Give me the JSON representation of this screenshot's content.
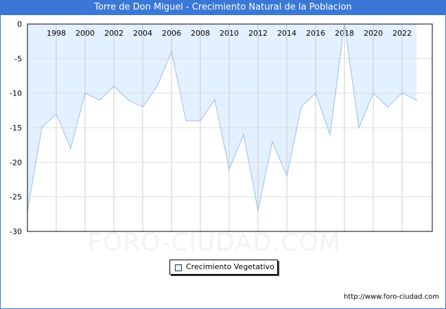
{
  "title": "Torre de Don Miguel - Crecimiento Natural de la Poblacion",
  "watermark": "FORO-CIUDAD.COM",
  "url": "http://www.foro-ciudad.com",
  "colors": {
    "header": "#3a78d8",
    "fill": "#e3f0ff",
    "line": "#9bbcee"
  },
  "chart_data": {
    "type": "area",
    "title": "Torre de Don Miguel - Crecimiento Natural de la Poblacion",
    "x": [
      1996,
      1997,
      1998,
      1999,
      2000,
      2001,
      2002,
      2003,
      2004,
      2005,
      2006,
      2007,
      2008,
      2009,
      2010,
      2011,
      2012,
      2013,
      2014,
      2015,
      2016,
      2017,
      2018,
      2019,
      2020,
      2021,
      2022,
      2023
    ],
    "series": [
      {
        "name": "Crecimiento Vegetativo",
        "values": [
          -27,
          -15,
          -13,
          -18,
          -10,
          -11,
          -9,
          -11,
          -12,
          -9,
          -4,
          -14,
          -14,
          -11,
          -21,
          -16,
          -27,
          -17,
          -22,
          -12,
          -10,
          -16,
          0,
          -15,
          -10,
          -12,
          -10,
          -11
        ]
      }
    ],
    "xticks": [
      "1998",
      "2000",
      "2002",
      "2004",
      "2006",
      "2008",
      "2010",
      "2012",
      "2014",
      "2016",
      "2018",
      "2020",
      "2022"
    ],
    "yticks": [
      "0",
      "-5",
      "-10",
      "-15",
      "-20",
      "-25",
      "-30"
    ],
    "ylim": [
      -30,
      0
    ],
    "grid": true,
    "legend": "bottom-center"
  }
}
